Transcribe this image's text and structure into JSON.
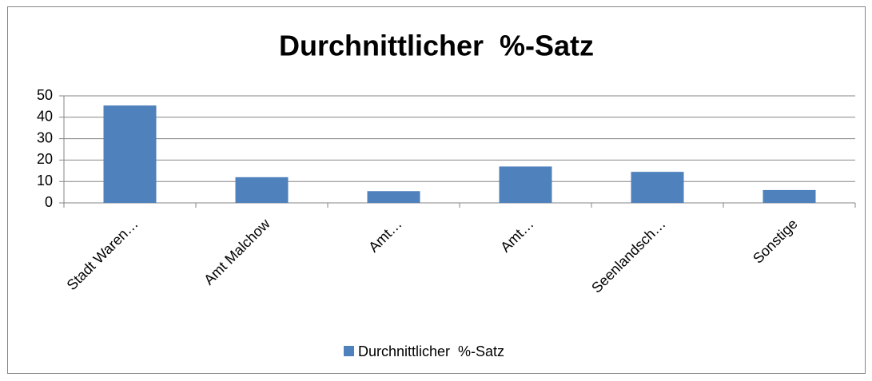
{
  "chart_data": {
    "type": "bar",
    "title": "Durchnittlicher  %-Satz",
    "categories": [
      "Stadt Waren…",
      "Amt Malchow",
      "Amt…",
      "Amt…",
      "Seenlandsch…",
      "Sonstige"
    ],
    "series": [
      {
        "name": "Durchnittlicher  %-Satz",
        "color": "#4f81bd",
        "values": [
          45.5,
          12,
          5.5,
          17,
          14.5,
          6
        ]
      }
    ],
    "ylim": [
      0,
      50
    ],
    "yticks": [
      0,
      10,
      20,
      30,
      40,
      50
    ],
    "grid": true,
    "legend": "bottom"
  }
}
